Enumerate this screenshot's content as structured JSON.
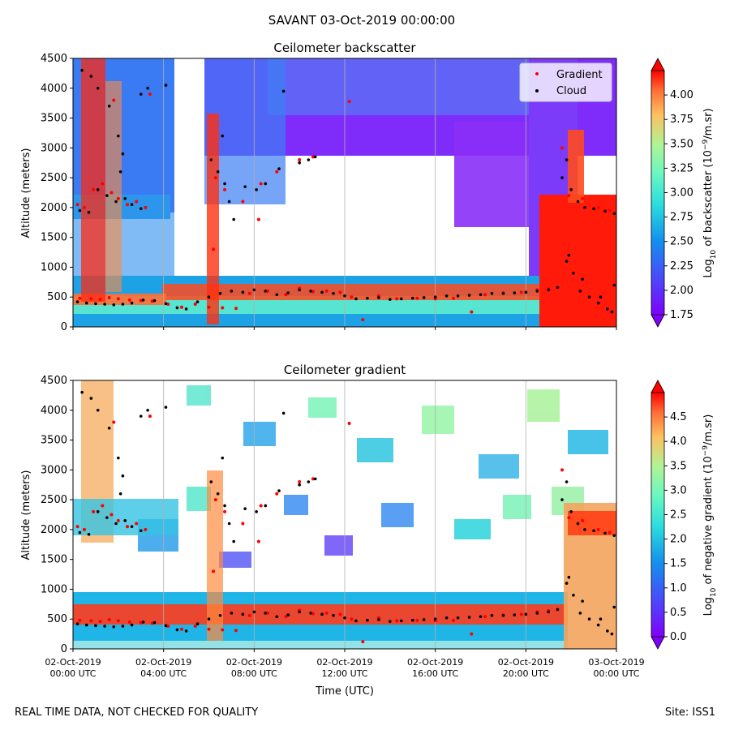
{
  "figure": {
    "title": "SAVANT 03-Oct-2019 00:00:00",
    "footer_left": "REAL TIME DATA, NOT CHECKED FOR QUALITY",
    "footer_right": "Site: ISS1"
  },
  "chart_data": [
    {
      "type": "heatmap",
      "title": "Ceilometer backscatter",
      "ylabel": "Altitude (meters)",
      "xlabel": "",
      "ylim": [
        0,
        4500
      ],
      "xlim_hours": [
        0,
        24
      ],
      "yticks": [
        0,
        500,
        1000,
        1500,
        2000,
        2500,
        3000,
        3500,
        4000,
        4500
      ],
      "grid": true,
      "legend": {
        "position": "top-right",
        "entries": [
          {
            "name": "Gradient",
            "color": "#ff0000"
          },
          {
            "name": "Cloud",
            "color": "#000000"
          }
        ]
      },
      "colorbar": {
        "label": "Log10 of backscatter (10^-9/m.sr)",
        "label_parts": {
          "pre": "Log",
          "sub": "10",
          "mid": " of backscatter (10",
          "sup": "−9",
          "post": "/m.sr)"
        },
        "range": [
          1.75,
          4.25
        ],
        "ticks": [
          "1.75",
          "2.00",
          "2.25",
          "2.50",
          "2.75",
          "3.00",
          "3.25",
          "3.50",
          "3.75",
          "4.00"
        ],
        "colormap": "rainbow"
      },
      "series": [
        {
          "name": "Gradient",
          "color": "#ff0000",
          "points": [
            [
              0.3,
              480
            ],
            [
              0.8,
              470
            ],
            [
              1.2,
              460
            ],
            [
              1.6,
              490
            ],
            [
              2.0,
              470
            ],
            [
              2.5,
              450
            ],
            [
              3.0,
              440
            ],
            [
              3.5,
              430
            ],
            [
              4.2,
              380
            ],
            [
              4.8,
              330
            ],
            [
              5.4,
              380
            ],
            [
              6.0,
              330
            ],
            [
              6.6,
              320
            ],
            [
              7.2,
              310
            ],
            [
              7.8,
              560
            ],
            [
              8.6,
              600
            ],
            [
              9.4,
              540
            ],
            [
              10.0,
              650
            ],
            [
              10.6,
              590
            ],
            [
              11.2,
              600
            ],
            [
              11.8,
              580
            ],
            [
              12.3,
              500
            ],
            [
              12.8,
              120
            ],
            [
              13.5,
              520
            ],
            [
              14.3,
              470
            ],
            [
              15.2,
              480
            ],
            [
              16.0,
              470
            ],
            [
              16.8,
              480
            ],
            [
              17.6,
              250
            ],
            [
              18.2,
              540
            ],
            [
              19.0,
              570
            ],
            [
              19.8,
              580
            ],
            [
              20.5,
              620
            ],
            [
              21.0,
              640
            ],
            [
              0.5,
              2000
            ],
            [
              0.9,
              2300
            ],
            [
              1.3,
              2400
            ],
            [
              1.7,
              2250
            ],
            [
              2.0,
              2150
            ],
            [
              2.4,
              2050
            ],
            [
              2.8,
              2100
            ],
            [
              3.2,
              2000
            ],
            [
              1.8,
              3800
            ],
            [
              3.4,
              3900
            ],
            [
              6.3,
              2500
            ],
            [
              6.7,
              2300
            ],
            [
              7.5,
              2100
            ],
            [
              8.3,
              2400
            ],
            [
              9.0,
              2600
            ],
            [
              10.0,
              2800
            ],
            [
              10.6,
              2850
            ],
            [
              12.2,
              3780
            ],
            [
              21.9,
              2200
            ],
            [
              22.5,
              2150
            ],
            [
              23.2,
              2000
            ],
            [
              23.7,
              1950
            ],
            [
              0.2,
              2050
            ],
            [
              6.2,
              1300
            ],
            [
              8.2,
              1800
            ],
            [
              21.6,
              3000
            ]
          ]
        },
        {
          "name": "Cloud",
          "color": "#000000",
          "points": [
            [
              0.2,
              420
            ],
            [
              0.6,
              400
            ],
            [
              1.0,
              390
            ],
            [
              1.4,
              380
            ],
            [
              1.8,
              370
            ],
            [
              2.2,
              380
            ],
            [
              2.6,
              400
            ],
            [
              3.1,
              450
            ],
            [
              3.6,
              440
            ],
            [
              4.1,
              390
            ],
            [
              4.6,
              320
            ],
            [
              5.0,
              300
            ],
            [
              5.5,
              420
            ],
            [
              6.0,
              500
            ],
            [
              6.5,
              560
            ],
            [
              7.0,
              600
            ],
            [
              7.5,
              580
            ],
            [
              8.0,
              620
            ],
            [
              8.5,
              600
            ],
            [
              9.0,
              540
            ],
            [
              9.5,
              570
            ],
            [
              10.0,
              620
            ],
            [
              10.5,
              600
            ],
            [
              11.0,
              580
            ],
            [
              11.5,
              560
            ],
            [
              12.0,
              520
            ],
            [
              12.5,
              470
            ],
            [
              13.0,
              480
            ],
            [
              13.5,
              490
            ],
            [
              14.0,
              460
            ],
            [
              14.5,
              470
            ],
            [
              15.0,
              480
            ],
            [
              15.5,
              490
            ],
            [
              16.0,
              500
            ],
            [
              16.5,
              520
            ],
            [
              17.0,
              520
            ],
            [
              17.5,
              530
            ],
            [
              18.0,
              540
            ],
            [
              18.5,
              560
            ],
            [
              19.0,
              560
            ],
            [
              19.5,
              570
            ],
            [
              20.0,
              580
            ],
            [
              20.5,
              600
            ],
            [
              21.0,
              620
            ],
            [
              21.4,
              660
            ],
            [
              21.8,
              1100
            ],
            [
              22.1,
              900
            ],
            [
              22.4,
              600
            ],
            [
              22.8,
              500
            ],
            [
              23.2,
              400
            ],
            [
              23.6,
              300
            ],
            [
              23.9,
              700
            ],
            [
              0.3,
              1950
            ],
            [
              0.7,
              1920
            ],
            [
              1.1,
              2300
            ],
            [
              1.5,
              2200
            ],
            [
              1.9,
              2100
            ],
            [
              2.3,
              2150
            ],
            [
              2.6,
              2050
            ],
            [
              3.0,
              1980
            ],
            [
              0.4,
              4300
            ],
            [
              0.8,
              4200
            ],
            [
              1.1,
              4000
            ],
            [
              1.6,
              3700
            ],
            [
              2.0,
              3200
            ],
            [
              2.2,
              2900
            ],
            [
              2.1,
              2600
            ],
            [
              3.0,
              3900
            ],
            [
              3.3,
              4000
            ],
            [
              4.1,
              4050
            ],
            [
              6.1,
              2800
            ],
            [
              6.4,
              2600
            ],
            [
              6.7,
              2400
            ],
            [
              6.9,
              2100
            ],
            [
              7.1,
              1800
            ],
            [
              6.6,
              3200
            ],
            [
              7.6,
              2350
            ],
            [
              8.1,
              2300
            ],
            [
              8.5,
              2400
            ],
            [
              9.1,
              2650
            ],
            [
              10.0,
              2750
            ],
            [
              10.4,
              2800
            ],
            [
              10.7,
              2850
            ],
            [
              9.3,
              3950
            ],
            [
              21.6,
              2500
            ],
            [
              21.8,
              2800
            ],
            [
              22.0,
              2300
            ],
            [
              22.3,
              2100
            ],
            [
              22.6,
              2000
            ],
            [
              23.0,
              1980
            ],
            [
              23.5,
              1940
            ],
            [
              23.9,
              1900
            ],
            [
              21.9,
              1200
            ],
            [
              22.5,
              800
            ],
            [
              23.3,
              500
            ],
            [
              23.8,
              250
            ]
          ]
        }
      ]
    },
    {
      "type": "heatmap",
      "title": "Ceilometer gradient",
      "ylabel": "Altitude (meters)",
      "xlabel": "Time (UTC)",
      "ylim": [
        0,
        4500
      ],
      "xlim_hours": [
        0,
        24
      ],
      "yticks": [
        0,
        500,
        1000,
        1500,
        2000,
        2500,
        3000,
        3500,
        4000,
        4500
      ],
      "xticks": [
        {
          "hour": 0,
          "date": "02-Oct-2019",
          "time": "00:00 UTC"
        },
        {
          "hour": 4,
          "date": "02-Oct-2019",
          "time": "04:00 UTC"
        },
        {
          "hour": 8,
          "date": "02-Oct-2019",
          "time": "08:00 UTC"
        },
        {
          "hour": 12,
          "date": "02-Oct-2019",
          "time": "12:00 UTC"
        },
        {
          "hour": 16,
          "date": "02-Oct-2019",
          "time": "16:00 UTC"
        },
        {
          "hour": 20,
          "date": "02-Oct-2019",
          "time": "20:00 UTC"
        },
        {
          "hour": 24,
          "date": "03-Oct-2019",
          "time": "00:00 UTC"
        }
      ],
      "grid": true,
      "colorbar": {
        "label": "Log10 of negative gradient (10^-9/m.sr)",
        "label_parts": {
          "pre": "Log",
          "sub": "10",
          "mid": " of negative gradient (10",
          "sup": "−9",
          "post": "/m.sr)"
        },
        "range": [
          0.0,
          5.0
        ],
        "ticks": [
          "0.0",
          "0.5",
          "1.0",
          "1.5",
          "2.0",
          "2.5",
          "3.0",
          "3.5",
          "4.0",
          "4.5"
        ],
        "colormap": "rainbow"
      },
      "series_ref": "same Gradient and Cloud points as backscatter panel"
    }
  ]
}
